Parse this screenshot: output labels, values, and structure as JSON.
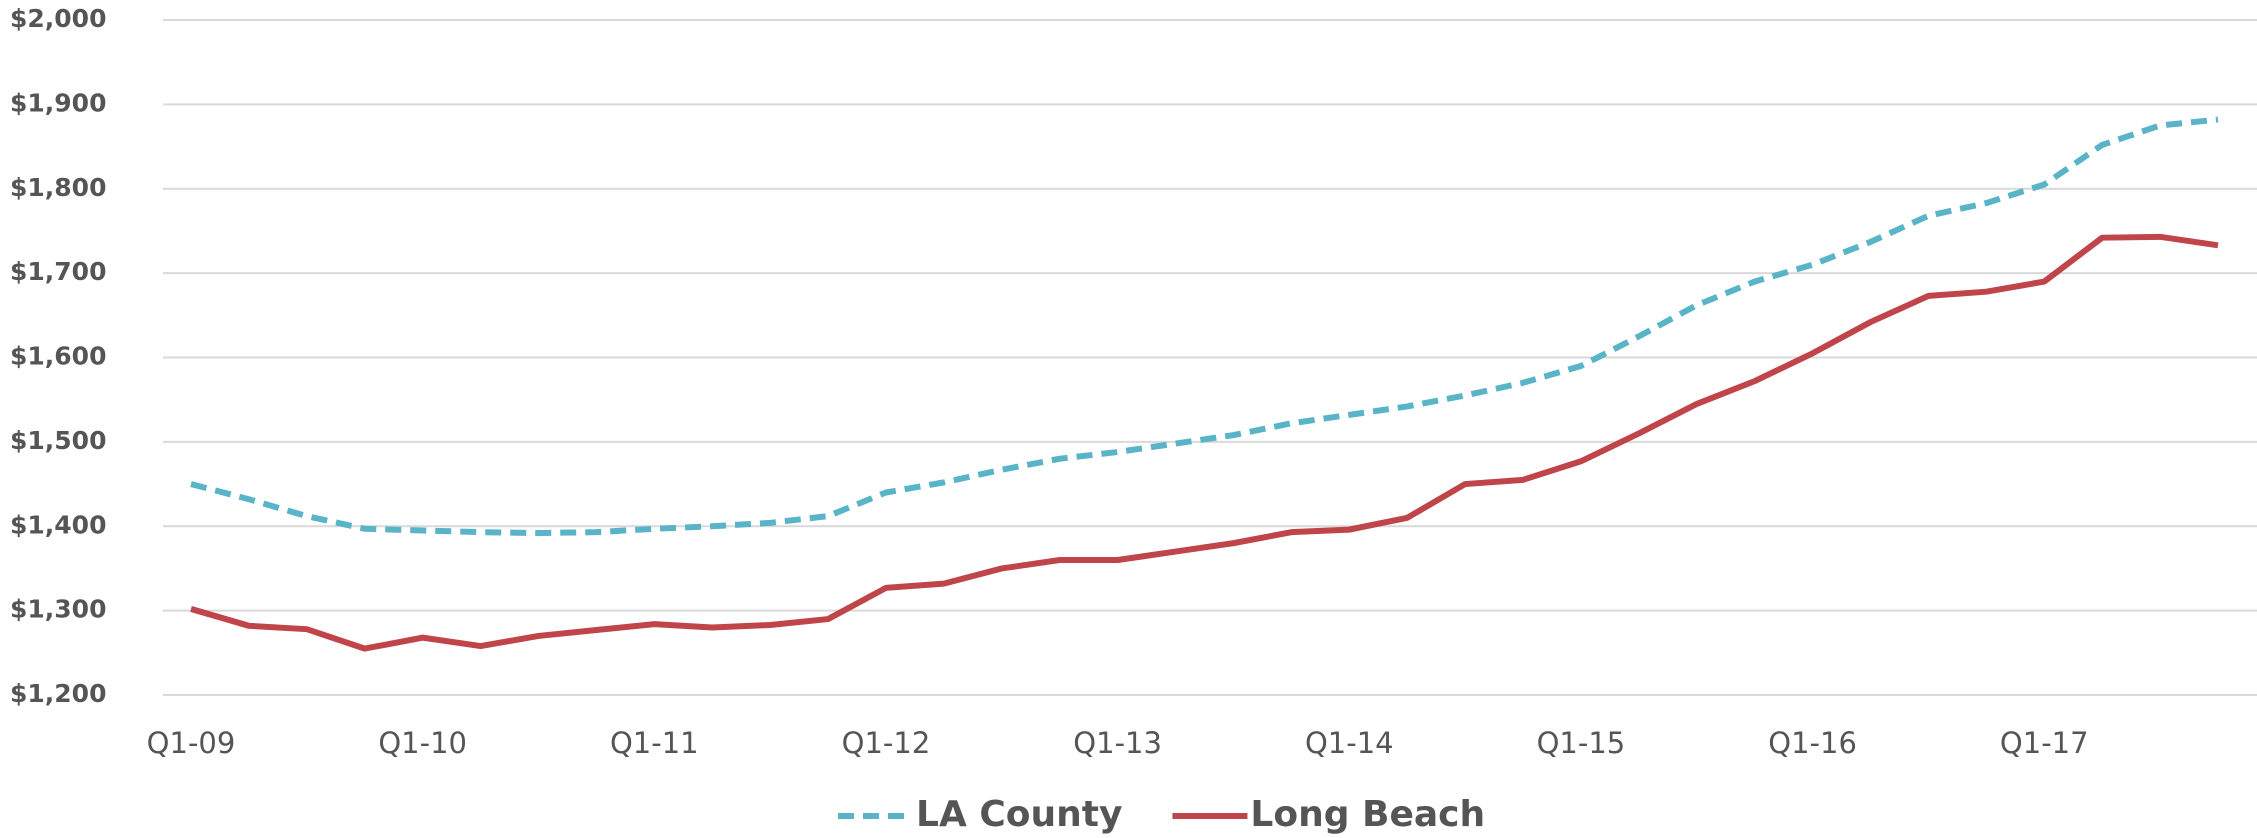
{
  "chart_data": {
    "type": "line",
    "categories": [
      "Q1-09",
      null,
      null,
      null,
      "Q1-10",
      null,
      null,
      null,
      "Q1-11",
      null,
      null,
      null,
      "Q1-12",
      null,
      null,
      null,
      "Q1-13",
      null,
      null,
      null,
      "Q1-14",
      null,
      null,
      null,
      "Q1-15",
      null,
      null,
      null,
      "Q1-16",
      null,
      null,
      null,
      "Q1-17",
      null,
      null,
      null
    ],
    "series": [
      {
        "name": "LA County",
        "color": "#5ab4c8",
        "dashed": true,
        "values": [
          1450,
          1432,
          1412,
          1397,
          1395,
          1393,
          1392,
          1393,
          1397,
          1400,
          1404,
          1412,
          1440,
          1452,
          1467,
          1480,
          1488,
          1498,
          1508,
          1522,
          1532,
          1542,
          1555,
          1570,
          1590,
          1625,
          1662,
          1690,
          1710,
          1737,
          1768,
          1783,
          1805,
          1852,
          1875,
          1882
        ]
      },
      {
        "name": "Long Beach",
        "color": "#c0454a",
        "dashed": false,
        "values": [
          1302,
          1282,
          1278,
          1255,
          1268,
          1258,
          1270,
          1277,
          1284,
          1280,
          1283,
          1290,
          1327,
          1332,
          1350,
          1360,
          1360,
          1370,
          1380,
          1393,
          1396,
          1410,
          1450,
          1455,
          1477,
          1510,
          1545,
          1572,
          1605,
          1642,
          1673,
          1678,
          1690,
          1742,
          1743,
          1733
        ]
      }
    ],
    "ylim": [
      1200,
      2000
    ],
    "yticks": [
      {
        "value": 1200,
        "label": "$1,200"
      },
      {
        "value": 1300,
        "label": "$1,300"
      },
      {
        "value": 1400,
        "label": "$1,400"
      },
      {
        "value": 1500,
        "label": "$1,500"
      },
      {
        "value": 1600,
        "label": "$1,600"
      },
      {
        "value": 1700,
        "label": "$1,700"
      },
      {
        "value": 1800,
        "label": "$1,800"
      },
      {
        "value": 1900,
        "label": "$1,900"
      },
      {
        "value": 2000,
        "label": "$2,000"
      }
    ],
    "grid": true,
    "legend": "bottom"
  }
}
